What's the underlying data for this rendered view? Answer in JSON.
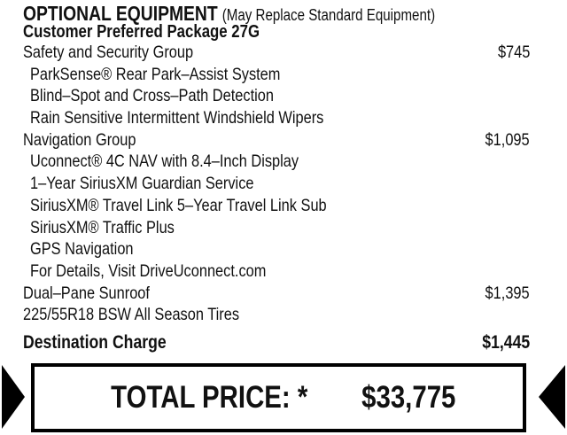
{
  "header": {
    "title": "OPTIONAL EQUIPMENT",
    "subtitle": "(May Replace Standard Equipment)",
    "package": "Customer Preferred Package 27G"
  },
  "items": [
    {
      "label": "Safety and Security Group",
      "price": "$745",
      "indent": false
    },
    {
      "label": "ParkSense® Rear Park–Assist System",
      "price": "",
      "indent": true
    },
    {
      "label": "Blind–Spot and Cross–Path Detection",
      "price": "",
      "indent": true
    },
    {
      "label": "Rain Sensitive Intermittent Windshield Wipers",
      "price": "",
      "indent": true
    },
    {
      "label": "Navigation Group",
      "price": "$1,095",
      "indent": false
    },
    {
      "label": "Uconnect® 4C NAV with 8.4–Inch Display",
      "price": "",
      "indent": true
    },
    {
      "label": "1–Year SiriusXM Guardian Service",
      "price": "",
      "indent": true
    },
    {
      "label": "SiriusXM® Travel Link 5–Year Travel Link Sub",
      "price": "",
      "indent": true
    },
    {
      "label": "SiriusXM® Traffic Plus",
      "price": "",
      "indent": true
    },
    {
      "label": "GPS Navigation",
      "price": "",
      "indent": true
    },
    {
      "label": "For Details, Visit DriveUconnect.com",
      "price": "",
      "indent": true
    },
    {
      "label": "Dual–Pane Sunroof",
      "price": "$1,395",
      "indent": false
    },
    {
      "label": "225/55R18 BSW All Season Tires",
      "price": "",
      "indent": false
    }
  ],
  "destination": {
    "label": "Destination Charge",
    "price": "$1,445"
  },
  "total": {
    "label": "TOTAL PRICE: *",
    "price": "$33,775"
  }
}
